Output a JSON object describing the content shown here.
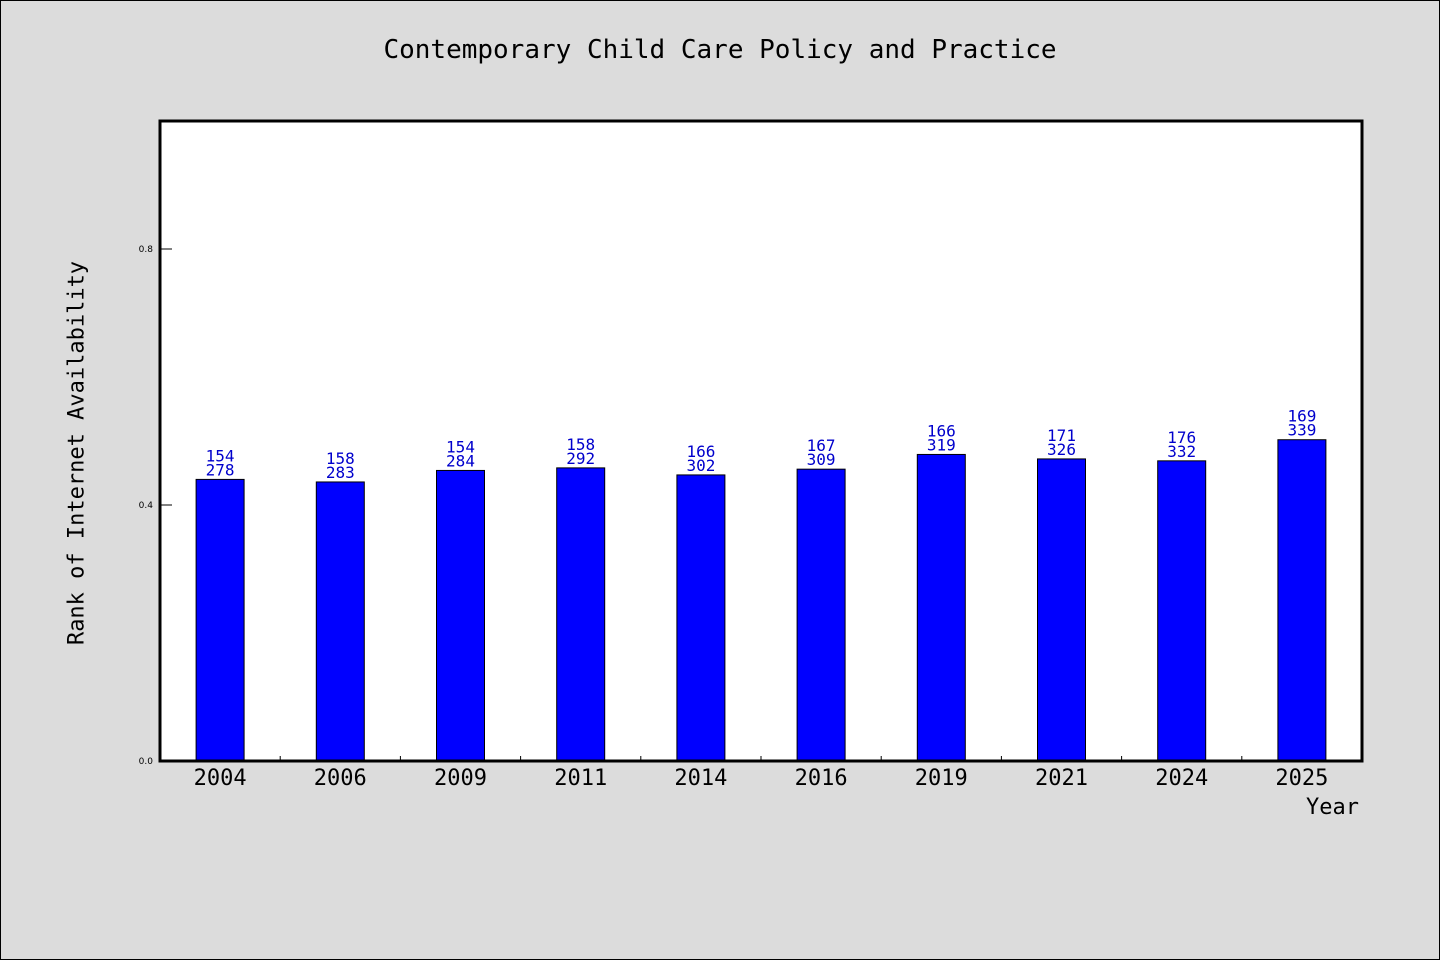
{
  "chart_data": {
    "type": "bar",
    "title": "Contemporary Child Care Policy and Practice",
    "xlabel": "Year",
    "ylabel": "Rank of Internet Availability",
    "ylim": [
      0,
      1.0
    ],
    "yticks": [
      "0.0",
      "0.4",
      "0.8"
    ],
    "grid": false,
    "categories": [
      "2004",
      "2006",
      "2009",
      "2011",
      "2014",
      "2016",
      "2019",
      "2021",
      "2024",
      "2025"
    ],
    "values": [
      0.44,
      0.436,
      0.454,
      0.458,
      0.447,
      0.456,
      0.479,
      0.472,
      0.469,
      0.502
    ],
    "data_labels": [
      [
        "154",
        "278"
      ],
      [
        "158",
        "283"
      ],
      [
        "154",
        "284"
      ],
      [
        "158",
        "292"
      ],
      [
        "166",
        "302"
      ],
      [
        "167",
        "309"
      ],
      [
        "166",
        "319"
      ],
      [
        "171",
        "326"
      ],
      [
        "176",
        "332"
      ],
      [
        "169",
        "339"
      ]
    ],
    "bar_color": "#0000ff",
    "label_color": "#0000cc"
  }
}
